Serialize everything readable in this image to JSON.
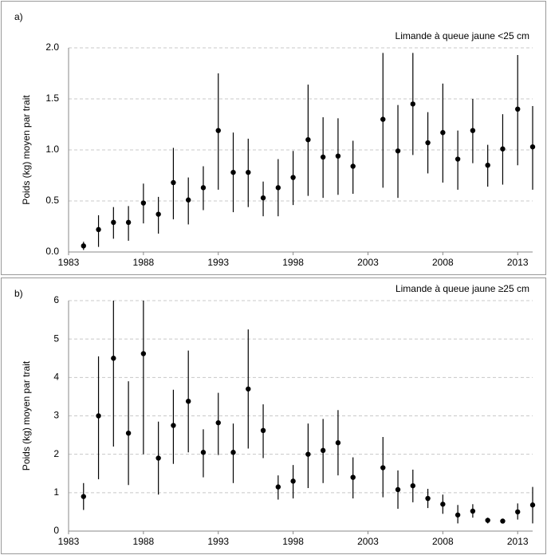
{
  "chart_data": [
    {
      "type": "scatter",
      "panel_label": "a)",
      "annotation": "Limande à queue jaune <25 cm",
      "y_label": "Poids (kg) moyen par trait",
      "x": [
        1984,
        1985,
        1986,
        1987,
        1988,
        1989,
        1990,
        1991,
        1992,
        1993,
        1994,
        1995,
        1996,
        1997,
        1998,
        1999,
        2000,
        2001,
        2002,
        2004,
        2005,
        2006,
        2007,
        2008,
        2009,
        2010,
        2011,
        2012,
        2013,
        2014
      ],
      "values": [
        0.06,
        0.22,
        0.29,
        0.29,
        0.48,
        0.37,
        0.68,
        0.51,
        0.63,
        1.19,
        0.78,
        0.78,
        0.53,
        0.63,
        0.73,
        1.1,
        0.93,
        0.94,
        0.84,
        1.3,
        0.99,
        1.45,
        1.07,
        1.17,
        0.91,
        1.19,
        0.85,
        1.01,
        1.4,
        1.03
      ],
      "lower": [
        0.02,
        0.05,
        0.13,
        0.11,
        0.28,
        0.18,
        0.32,
        0.27,
        0.41,
        0.61,
        0.39,
        0.44,
        0.35,
        0.35,
        0.46,
        0.55,
        0.53,
        0.56,
        0.57,
        0.63,
        0.53,
        0.95,
        0.77,
        0.68,
        0.61,
        0.87,
        0.64,
        0.66,
        0.85,
        0.61
      ],
      "upper": [
        0.1,
        0.36,
        0.44,
        0.45,
        0.67,
        0.54,
        1.02,
        0.73,
        0.84,
        1.75,
        1.17,
        1.11,
        0.69,
        0.91,
        0.99,
        1.64,
        1.32,
        1.31,
        1.09,
        1.95,
        1.44,
        1.95,
        1.37,
        1.65,
        1.19,
        1.5,
        1.05,
        1.35,
        1.93,
        1.43
      ],
      "color": "#000000",
      "xlim": [
        1983,
        2014
      ],
      "xticks": [
        1983,
        1988,
        1993,
        1998,
        2003,
        2008,
        2013
      ],
      "ylim": [
        0,
        2
      ],
      "yticks": [
        {
          "value": 0,
          "label": "0.0"
        },
        {
          "value": 0.5,
          "label": "0.5"
        },
        {
          "value": 1,
          "label": "1.0"
        },
        {
          "value": 1.5,
          "label": "1.5"
        },
        {
          "value": 2,
          "label": "2.0"
        }
      ],
      "grid": true
    },
    {
      "type": "scatter",
      "panel_label": "b)",
      "annotation": "Limande à queue jaune ≥25 cm",
      "y_label": "Poids (kg) moyen par trait",
      "x": [
        1984,
        1985,
        1986,
        1987,
        1988,
        1989,
        1990,
        1991,
        1992,
        1993,
        1994,
        1995,
        1996,
        1997,
        1998,
        1999,
        2000,
        2001,
        2002,
        2004,
        2005,
        2006,
        2007,
        2008,
        2009,
        2010,
        2011,
        2012,
        2013,
        2014
      ],
      "values": [
        0.9,
        3.0,
        4.5,
        2.55,
        4.62,
        1.9,
        2.75,
        3.38,
        2.05,
        2.82,
        2.05,
        3.7,
        2.62,
        1.15,
        1.3,
        2.0,
        2.1,
        2.3,
        1.4,
        1.65,
        1.08,
        1.18,
        0.85,
        0.7,
        0.42,
        0.52,
        0.28,
        0.26,
        0.5,
        0.68
      ],
      "lower": [
        0.55,
        1.35,
        2.2,
        1.2,
        2.0,
        0.95,
        1.75,
        2.05,
        1.4,
        1.98,
        1.25,
        2.15,
        1.9,
        0.82,
        0.85,
        1.12,
        1.25,
        1.45,
        0.85,
        0.88,
        0.58,
        0.75,
        0.6,
        0.45,
        0.2,
        0.35,
        0.2,
        0.2,
        0.3,
        0.2
      ],
      "upper": [
        1.25,
        4.55,
        6.0,
        3.9,
        6.0,
        2.85,
        3.68,
        4.7,
        2.65,
        3.6,
        2.8,
        5.25,
        3.3,
        1.45,
        1.72,
        2.8,
        2.92,
        3.15,
        1.92,
        2.45,
        1.58,
        1.6,
        1.1,
        0.95,
        0.68,
        0.7,
        0.35,
        0.32,
        0.72,
        1.15
      ],
      "color": "#000000",
      "xlim": [
        1983,
        2014
      ],
      "xticks": [
        1983,
        1988,
        1993,
        1998,
        2003,
        2008,
        2013
      ],
      "ylim": [
        0,
        6
      ],
      "yticks": [
        0,
        1,
        2,
        3,
        4,
        5,
        6
      ],
      "grid": true
    }
  ]
}
